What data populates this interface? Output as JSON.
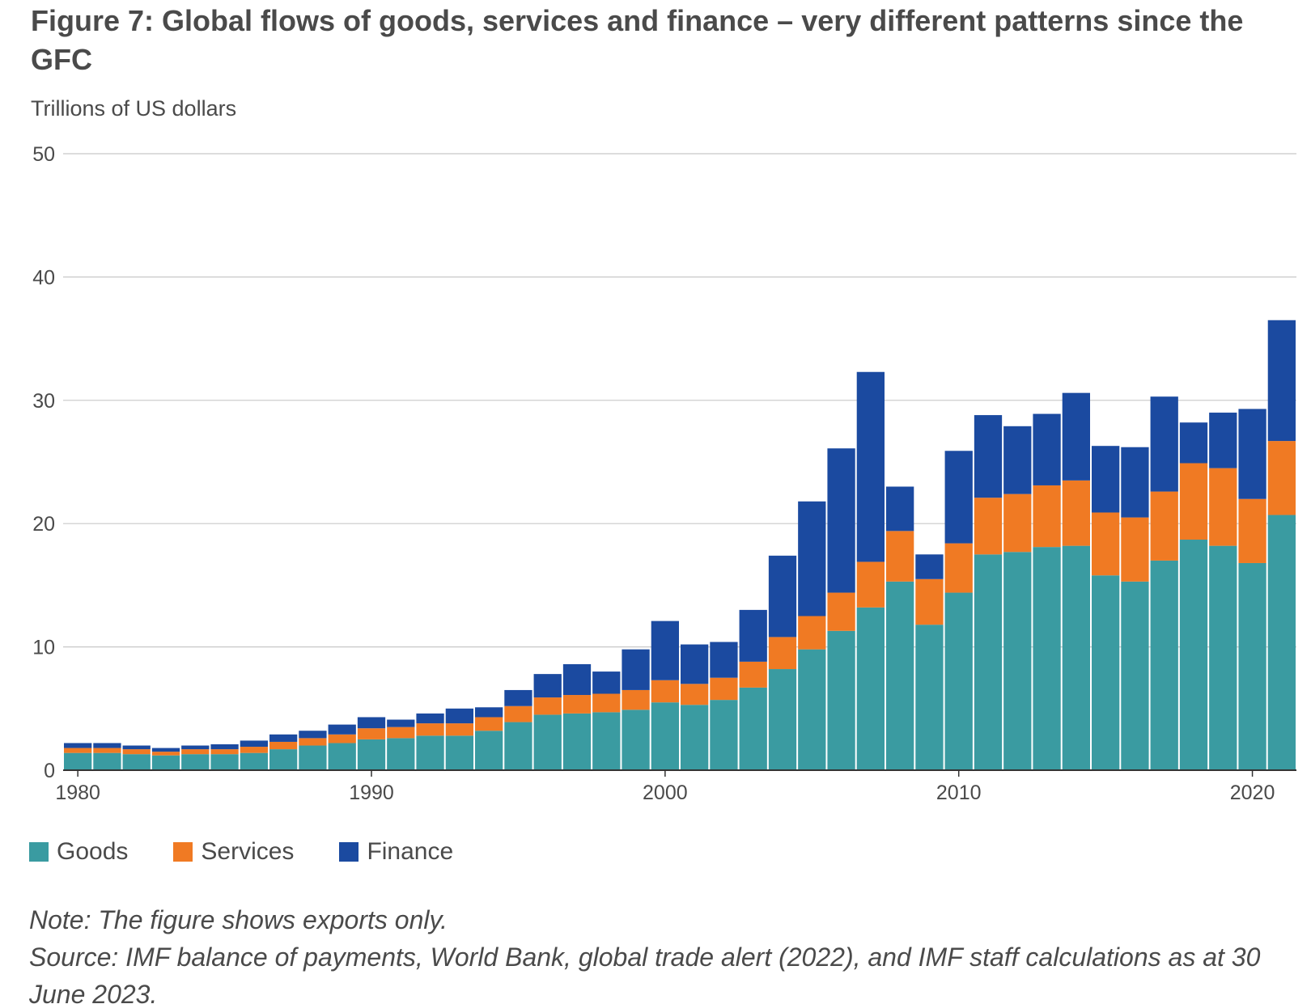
{
  "header": {
    "title": "Figure 7: Global flows of goods, services and finance – very different patterns since the GFC",
    "unit_label": "Trillions of US dollars"
  },
  "legend": {
    "items": [
      {
        "label": "Goods",
        "color": "#3a9ba1"
      },
      {
        "label": "Services",
        "color": "#f07a23"
      },
      {
        "label": "Finance",
        "color": "#1b4aa0"
      }
    ]
  },
  "footer": {
    "note": "Note: The figure shows exports only.",
    "source": "Source: IMF balance of payments, World Bank, global trade alert (2022), and IMF staff calculations as at 30 June 2023."
  },
  "chart_data": {
    "type": "bar",
    "stacked": true,
    "title": "Figure 7: Global flows of goods, services and finance – very different patterns since the GFC",
    "ylabel": "Trillions of US dollars",
    "xlabel": "",
    "ylim": [
      0,
      50
    ],
    "yticks": [
      0,
      10,
      20,
      30,
      40,
      50
    ],
    "xticks": [
      1980,
      1990,
      2000,
      2010,
      2020
    ],
    "grid": true,
    "legend_position": "bottom-left",
    "categories": [
      1980,
      1981,
      1982,
      1983,
      1984,
      1985,
      1986,
      1987,
      1988,
      1989,
      1990,
      1991,
      1992,
      1993,
      1994,
      1995,
      1996,
      1997,
      1998,
      1999,
      2000,
      2001,
      2002,
      2003,
      2004,
      2005,
      2006,
      2007,
      2008,
      2009,
      2010,
      2011,
      2012,
      2013,
      2014,
      2015,
      2016,
      2017,
      2018,
      2019,
      2020,
      2021
    ],
    "series": [
      {
        "name": "Goods",
        "color": "#3a9ba1",
        "values": [
          1.4,
          1.4,
          1.3,
          1.2,
          1.3,
          1.3,
          1.4,
          1.7,
          2.0,
          2.2,
          2.5,
          2.6,
          2.8,
          2.8,
          3.2,
          3.9,
          4.5,
          4.6,
          4.7,
          4.9,
          5.5,
          5.3,
          5.7,
          6.7,
          8.2,
          9.8,
          11.3,
          13.2,
          15.3,
          11.8,
          14.4,
          17.5,
          17.7,
          18.1,
          18.2,
          15.8,
          15.3,
          17.0,
          18.7,
          18.2,
          16.8,
          20.7
        ]
      },
      {
        "name": "Services",
        "color": "#f07a23",
        "values": [
          0.4,
          0.4,
          0.4,
          0.3,
          0.4,
          0.4,
          0.5,
          0.6,
          0.6,
          0.7,
          0.9,
          0.9,
          1.0,
          1.0,
          1.1,
          1.3,
          1.4,
          1.5,
          1.5,
          1.6,
          1.8,
          1.7,
          1.8,
          2.1,
          2.6,
          2.7,
          3.1,
          3.7,
          4.1,
          3.7,
          4.0,
          4.6,
          4.7,
          5.0,
          5.3,
          5.1,
          5.2,
          5.6,
          6.2,
          6.3,
          5.2,
          6.0
        ]
      },
      {
        "name": "Finance",
        "color": "#1b4aa0",
        "values": [
          0.4,
          0.4,
          0.3,
          0.3,
          0.3,
          0.4,
          0.5,
          0.6,
          0.6,
          0.8,
          0.9,
          0.6,
          0.8,
          1.2,
          0.8,
          1.3,
          1.9,
          2.5,
          1.8,
          3.3,
          4.8,
          3.2,
          2.9,
          4.2,
          6.6,
          9.3,
          11.7,
          15.4,
          3.6,
          2.0,
          7.5,
          6.7,
          5.5,
          5.8,
          7.1,
          5.4,
          5.7,
          7.7,
          3.3,
          4.5,
          7.3,
          9.8
        ]
      }
    ]
  }
}
